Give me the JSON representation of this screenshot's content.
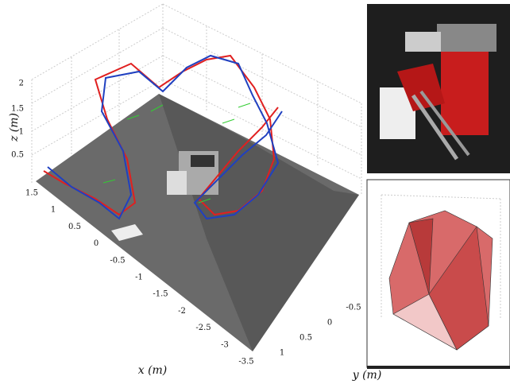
{
  "figure": {
    "z_axis": {
      "label": "z (m)",
      "ticks": [
        2,
        1.5,
        1,
        0.5
      ]
    },
    "x_axis": {
      "label": "x (m)",
      "ticks": [
        1.5,
        1,
        0.5,
        0,
        -0.5,
        -1,
        -1.5,
        -2,
        -2.5,
        -3,
        -3.5
      ]
    },
    "y_axis": {
      "label": "y (m)",
      "ticks": [
        -0.5,
        0,
        0.5,
        1
      ]
    }
  }
}
